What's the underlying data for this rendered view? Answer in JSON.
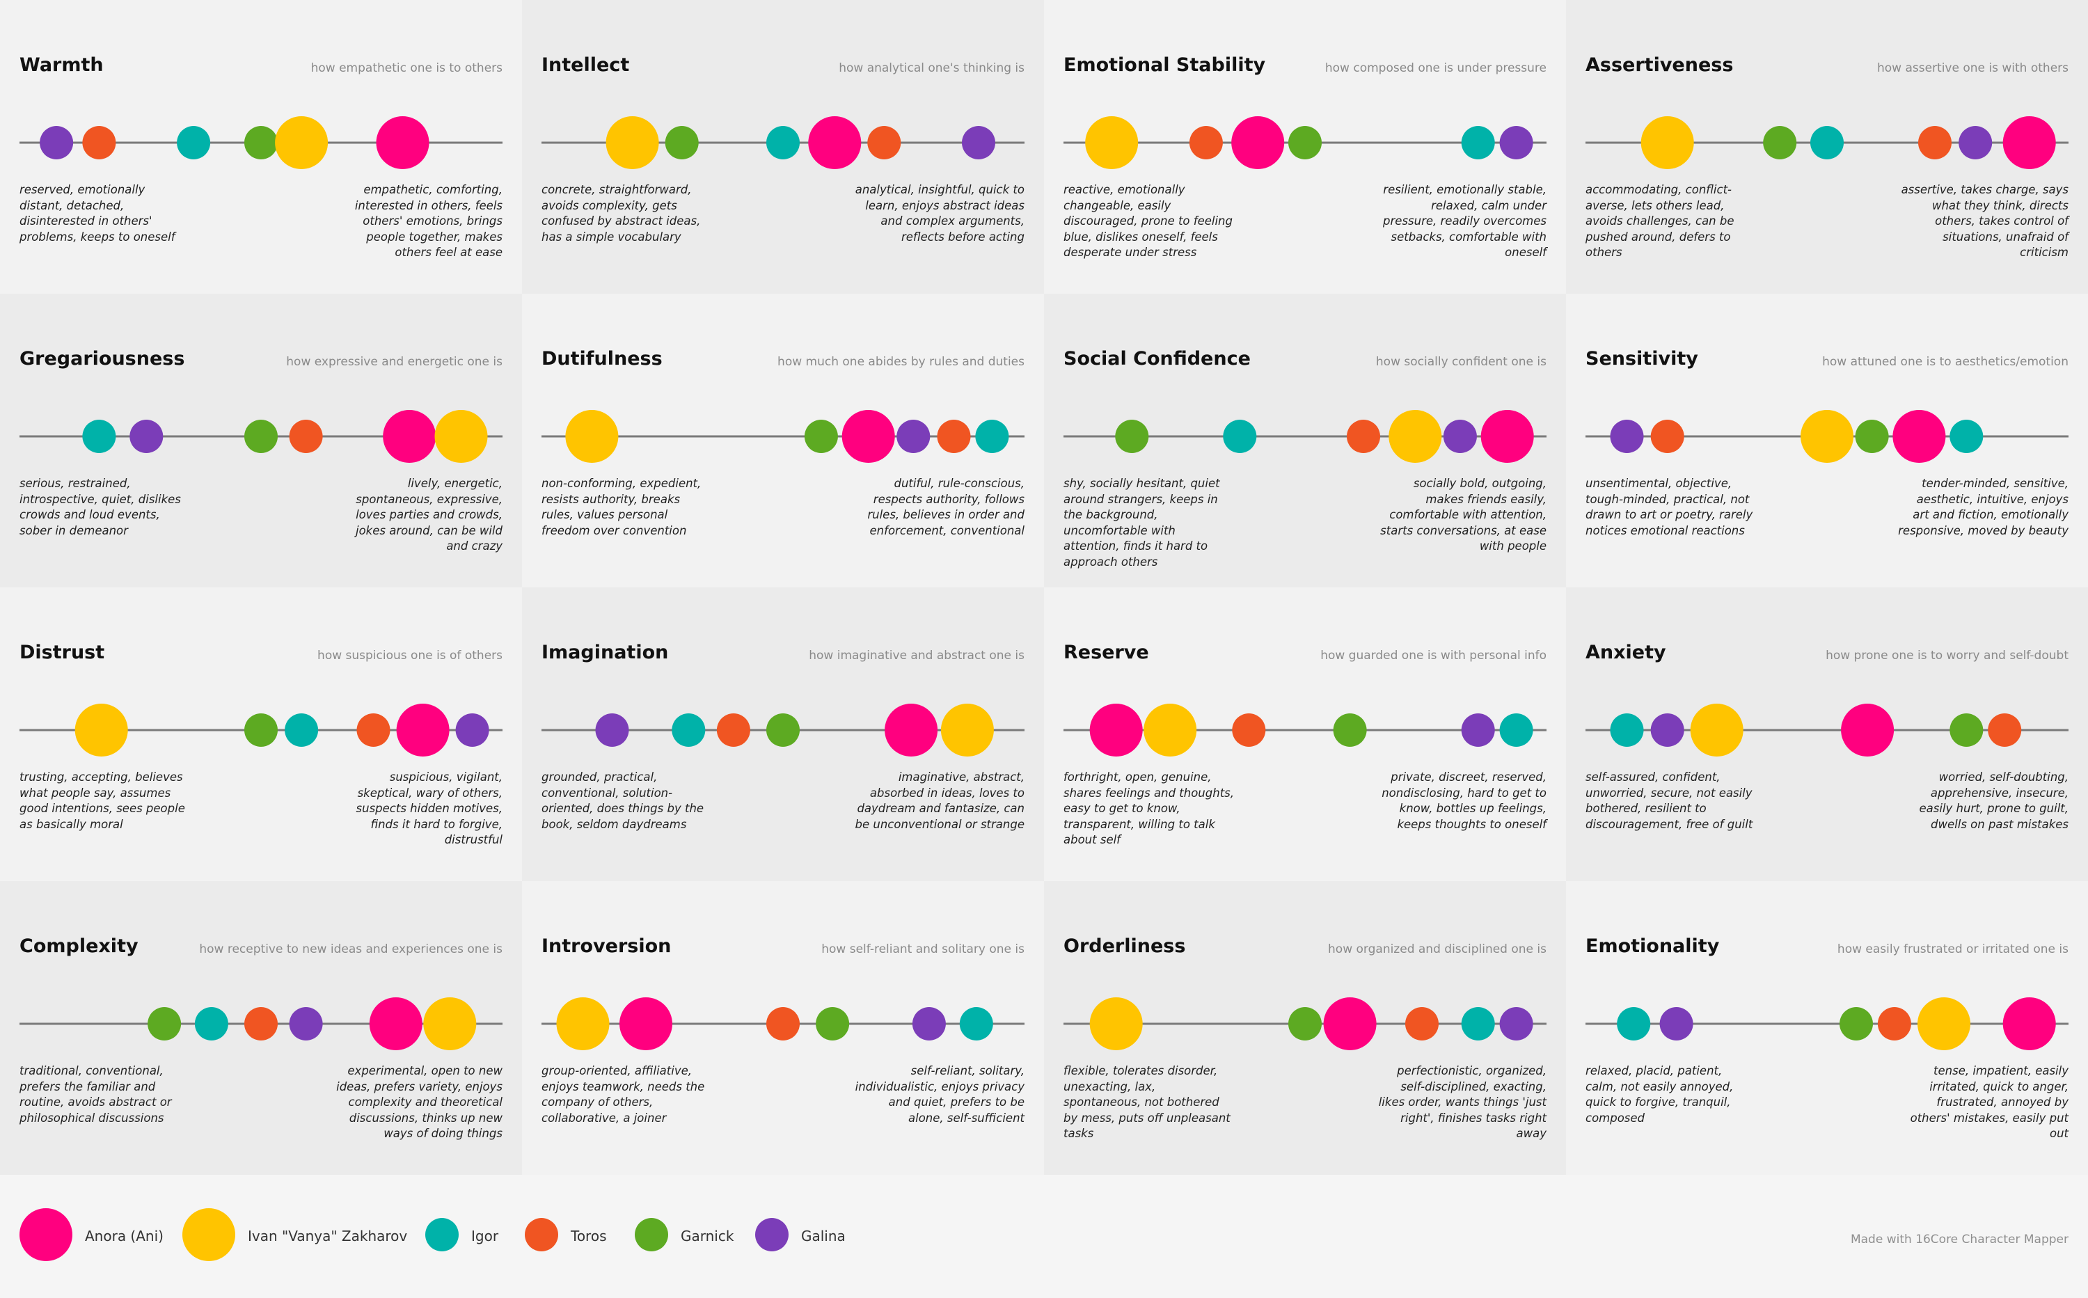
{
  "chart_data": {
    "type": "scatter",
    "scale": [
      0,
      100
    ],
    "colors": {
      "panel_light": "#f2f2f2",
      "panel_dark": "#ebebeb",
      "axis_line": "#7a7a7a",
      "page": "#f5f5f5"
    },
    "characters": [
      {
        "id": "ani",
        "name": "Anora (Ani)",
        "color": "#ff007f",
        "size": "large"
      },
      {
        "id": "vanya",
        "name": "Ivan \"Vanya\" Zakharov",
        "color": "#ffc400",
        "size": "large"
      },
      {
        "id": "igor",
        "name": "Igor",
        "color": "#00b2a9",
        "size": "small"
      },
      {
        "id": "toros",
        "name": "Toros",
        "color": "#f05522",
        "size": "small"
      },
      {
        "id": "garnick",
        "name": "Garnick",
        "color": "#5daa22",
        "size": "small"
      },
      {
        "id": "galina",
        "name": "Galina",
        "color": "#7b3db8",
        "size": "small"
      }
    ],
    "traits": [
      {
        "title": "Warmth",
        "subtitle": "how empathetic one is to others",
        "low": "reserved, emotionally distant, detached, disinterested in others' problems, keeps to oneself",
        "high": "empathetic, comforting, interested in others, feels others' emotions, brings people together, makes others feel at ease",
        "values": {
          "galina": 4.5,
          "toros": 14,
          "igor": 35,
          "garnick": 50,
          "vanya": 59,
          "ani": 81.5
        }
      },
      {
        "title": "Intellect",
        "subtitle": "how analytical one's thinking is",
        "low": "concrete, straightforward, avoids complexity, gets confused by abstract ideas, has a simple vocabulary",
        "high": "analytical, insightful, quick to learn, enjoys abstract ideas and complex arguments, reflects before acting",
        "values": {
          "vanya": 16.5,
          "garnick": 27.5,
          "igor": 50,
          "ani": 61.5,
          "toros": 72.5,
          "galina": 93.5
        }
      },
      {
        "title": "Emotional Stability",
        "subtitle": "how composed one is under pressure",
        "low": "reactive, emotionally changeable, easily discouraged, prone to feeling blue, dislikes oneself, feels desperate under stress",
        "high": "resilient, emotionally stable, relaxed, calm under pressure, readily overcomes setbacks, comfortable with oneself",
        "values": {
          "vanya": 7,
          "toros": 28,
          "ani": 39.5,
          "garnick": 50,
          "igor": 88.5,
          "galina": 97
        }
      },
      {
        "title": "Assertiveness",
        "subtitle": "how assertive one is with others",
        "low": "accommodating, conflict-averse, lets others lead, avoids challenges, can be pushed around, defers to others",
        "high": "assertive, takes charge, says what they think, directs others, takes control of situations, unafraid of criticism",
        "values": {
          "vanya": 14.5,
          "garnick": 39.5,
          "igor": 50,
          "toros": 74,
          "galina": 83,
          "ani": 95
        }
      },
      {
        "title": "Gregariousness",
        "subtitle": "how expressive and energetic one is",
        "low": "serious, restrained, introspective, quiet, dislikes crowds and loud events, sober in demeanor",
        "high": "lively, energetic, spontaneous, expressive, loves parties and crowds, jokes around, can be wild and crazy",
        "values": {
          "igor": 14,
          "galina": 24.5,
          "garnick": 50,
          "toros": 60,
          "ani": 83,
          "vanya": 94.5
        }
      },
      {
        "title": "Dutifulness",
        "subtitle": "how much one abides by rules and duties",
        "low": "non-conforming, expedient, resists authority, breaks rules, values personal freedom over convention",
        "high": "dutiful, rule-conscious, respects authority, follows rules, believes in order and enforcement, conventional",
        "values": {
          "vanya": 7.5,
          "garnick": 58.5,
          "ani": 69,
          "galina": 79,
          "toros": 88,
          "igor": 96.5
        }
      },
      {
        "title": "Social Confidence",
        "subtitle": "how socially confident one is",
        "low": "shy, socially hesitant, quiet around strangers, keeps in the background, uncomfortable with attention, finds it hard to approach others",
        "high": "socially bold, outgoing, makes friends easily, comfortable with attention, starts conversations, at ease with people",
        "values": {
          "garnick": 11.5,
          "igor": 35.5,
          "toros": 63,
          "vanya": 74.5,
          "galina": 84.5,
          "ani": 95
        }
      },
      {
        "title": "Sensitivity",
        "subtitle": "how attuned one is to aesthetics/emotion",
        "low": "unsentimental, objective, tough-minded, practical, not drawn to art or poetry, rarely notices emotional reactions",
        "high": "tender-minded, sensitive, aesthetic, intuitive, enjoys art and fiction, emotionally responsive, moved by beauty",
        "values": {
          "galina": 5.5,
          "toros": 14.5,
          "vanya": 50,
          "garnick": 60,
          "ani": 70.5,
          "igor": 81
        }
      },
      {
        "title": "Distrust",
        "subtitle": "how suspicious one is of others",
        "low": "trusting, accepting, believes what people say, assumes good intentions, sees people as basically moral",
        "high": "suspicious, vigilant, skeptical, wary of others, suspects hidden motives, finds it hard to forgive, distrustful",
        "values": {
          "vanya": 14.5,
          "garnick": 50,
          "igor": 59,
          "toros": 75,
          "ani": 86,
          "galina": 97
        }
      },
      {
        "title": "Imagination",
        "subtitle": "how imaginative and abstract one is",
        "low": "grounded, practical, conventional, solution-oriented, does things by the book, seldom daydreams",
        "high": "imaginative, abstract, absorbed in ideas, loves to daydream and fantasize, can be unconventional or strange",
        "values": {
          "galina": 12,
          "igor": 29,
          "toros": 39,
          "garnick": 50,
          "ani": 78.5,
          "vanya": 91
        }
      },
      {
        "title": "Reserve",
        "subtitle": "how guarded one is with personal info",
        "low": "forthright, open, genuine, shares feelings and thoughts, easy to get to know, transparent, willing to talk about self",
        "high": "private, discreet, reserved, nondisclosing, hard to get to know, bottles up feelings, keeps thoughts to oneself",
        "values": {
          "ani": 8,
          "vanya": 20,
          "toros": 37.5,
          "garnick": 60,
          "galina": 88.5,
          "igor": 97
        }
      },
      {
        "title": "Anxiety",
        "subtitle": "how prone one is to worry and self-doubt",
        "low": "self-assured, confident, unworried, secure, not easily bothered, resilient to discouragement, free of guilt",
        "high": "worried, self-doubting, apprehensive, insecure, easily hurt, prone to guilt, dwells on past mistakes",
        "values": {
          "igor": 5.5,
          "galina": 14.5,
          "vanya": 25.5,
          "ani": 59,
          "garnick": 81,
          "toros": 89.5
        }
      },
      {
        "title": "Complexity",
        "subtitle": "how receptive to new ideas and experiences one is",
        "low": "traditional, conventional, prefers the familiar and routine, avoids abstract or philosophical discussions",
        "high": "experimental, open to new ideas, prefers variety, enjoys complexity and theoretical discussions, thinks up new ways of doing things",
        "values": {
          "garnick": 28.5,
          "igor": 39,
          "toros": 50,
          "galina": 60,
          "ani": 80,
          "vanya": 92
        }
      },
      {
        "title": "Introversion",
        "subtitle": "how self-reliant and solitary one is",
        "low": "group-oriented, affiliative, enjoys teamwork, needs the company of others, collaborative, a joiner",
        "high": "self-reliant, solitary, individualistic, enjoys privacy and quiet, prefers to be alone, self-sufficient",
        "values": {
          "vanya": 5.5,
          "ani": 19.5,
          "toros": 50,
          "garnick": 61,
          "galina": 82.5,
          "igor": 93
        }
      },
      {
        "title": "Orderliness",
        "subtitle": "how organized and disciplined one is",
        "low": "flexible, tolerates disorder, unexacting, lax, spontaneous, not bothered by mess, puts off unpleasant tasks",
        "high": "perfectionistic, organized, self-disciplined, exacting, likes order, wants things 'just right', finishes tasks right away",
        "values": {
          "vanya": 8,
          "garnick": 50,
          "ani": 60,
          "toros": 76,
          "igor": 88.5,
          "galina": 97
        }
      },
      {
        "title": "Emotionality",
        "subtitle": "how easily frustrated or irritated one is",
        "low": "relaxed, placid, patient, calm, not easily annoyed, quick to forgive, tranquil, composed",
        "high": "tense, impatient, easily irritated, quick to anger, frustrated, annoyed by others' mistakes, easily put out",
        "values": {
          "igor": 7,
          "galina": 16.5,
          "garnick": 56.5,
          "toros": 65,
          "vanya": 76,
          "ani": 95
        }
      }
    ]
  },
  "footer": {
    "credit": "Made with 16Core Character Mapper"
  }
}
